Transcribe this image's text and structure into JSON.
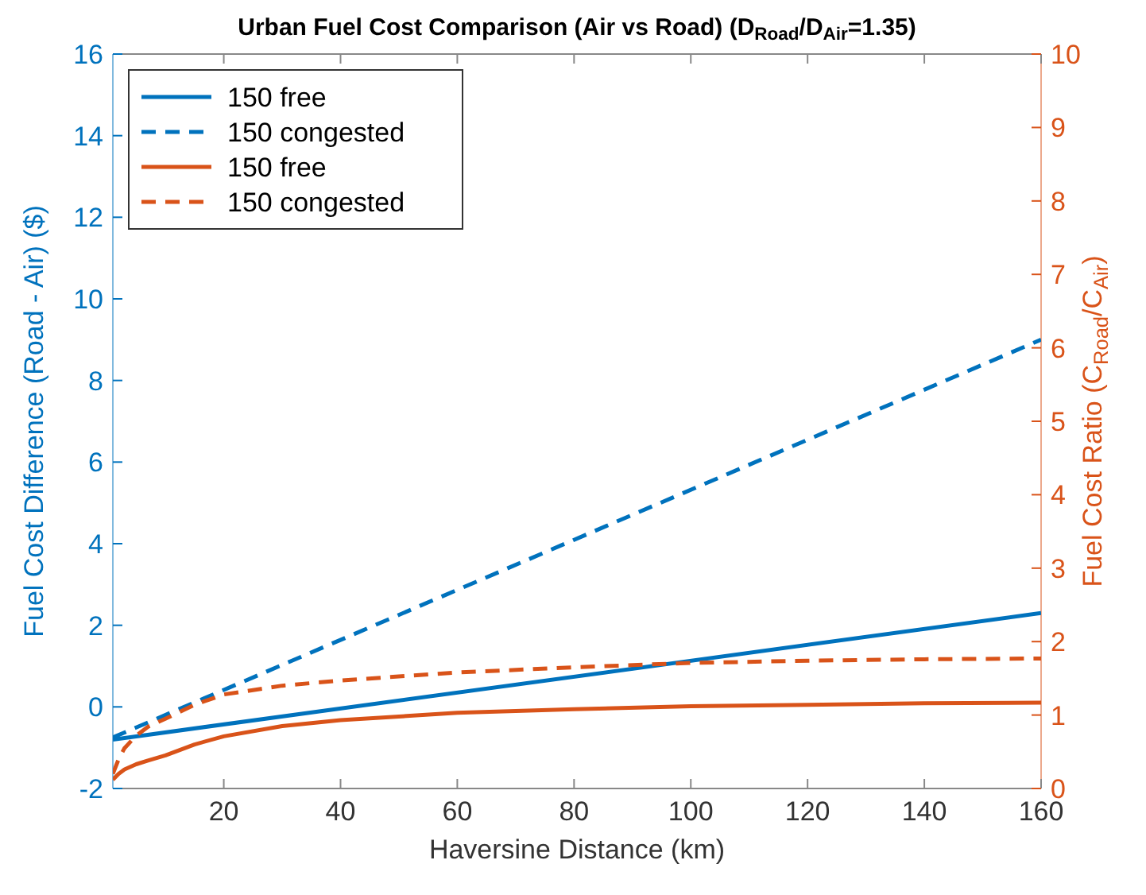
{
  "chart_data": {
    "type": "line",
    "title": "Urban Fuel Cost Comparison (Air vs Road) (D$_{Road}$/D$_{Air}$=1.35)",
    "xlabel": "Haversine Distance (km)",
    "ylabel": "Fuel Cost Difference (Road - Air) ($)",
    "y2label": "Fuel Cost Ratio (C$_{Road}$/C$_{Air}$)",
    "x": [
      1,
      160
    ],
    "xlim": [
      1,
      160
    ],
    "xticks": [
      20,
      40,
      60,
      80,
      100,
      120,
      140,
      160
    ],
    "ylim": [
      -2,
      16
    ],
    "yticks": [
      -2,
      0,
      2,
      4,
      6,
      8,
      10,
      12,
      14,
      16
    ],
    "y2lim": [
      0,
      10
    ],
    "y2ticks": [
      0,
      1,
      2,
      3,
      4,
      5,
      6,
      7,
      8,
      9,
      10
    ],
    "legend": "top left",
    "grid": false,
    "marker": "none",
    "series": [
      {
        "name": "150 free",
        "color": "#0072bd",
        "line_style": "solid",
        "values": [
          -0.8,
          2.3
        ]
      },
      {
        "name": "150 congested",
        "color": "#0072bd",
        "line_style": "dashed",
        "values": [
          -0.75,
          9.0
        ]
      },
      {
        "name": "150 free",
        "color": "#d95319",
        "line_style": "solid",
        "axis": "y2",
        "x": [
          1,
          2,
          3,
          5,
          7,
          10,
          15,
          20,
          30,
          40,
          60,
          80,
          100,
          120,
          140,
          160
        ],
        "values": [
          0.12,
          0.2,
          0.26,
          0.33,
          0.38,
          0.45,
          0.6,
          0.71,
          0.85,
          0.93,
          1.03,
          1.08,
          1.12,
          1.14,
          1.16,
          1.17
        ]
      },
      {
        "name": "150 congested",
        "color": "#d95319",
        "line_style": "dashed",
        "axis": "y2",
        "x": [
          1,
          2,
          3,
          5,
          7,
          10,
          15,
          20,
          30,
          40,
          60,
          80,
          100,
          120,
          140,
          160
        ],
        "values": [
          0.2,
          0.4,
          0.55,
          0.72,
          0.84,
          0.95,
          1.14,
          1.28,
          1.4,
          1.47,
          1.58,
          1.65,
          1.71,
          1.74,
          1.76,
          1.77
        ]
      }
    ]
  }
}
